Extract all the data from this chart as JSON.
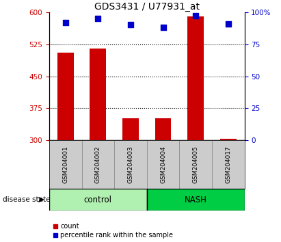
{
  "title": "GDS3431 / U77931_at",
  "samples": [
    "GSM204001",
    "GSM204002",
    "GSM204003",
    "GSM204004",
    "GSM204005",
    "GSM204017"
  ],
  "counts": [
    505,
    515,
    352,
    352,
    590,
    303
  ],
  "percentiles": [
    92,
    95,
    90,
    88,
    97,
    91
  ],
  "ylim_left": [
    300,
    600
  ],
  "ylim_right": [
    0,
    100
  ],
  "yticks_left": [
    300,
    375,
    450,
    525,
    600
  ],
  "yticks_right": [
    0,
    25,
    50,
    75,
    100
  ],
  "bar_color": "#cc0000",
  "scatter_color": "#0000cc",
  "bar_width": 0.5,
  "groups": [
    {
      "label": "control",
      "indices": [
        0,
        1,
        2
      ],
      "color": "#b0f0b0"
    },
    {
      "label": "NASH",
      "indices": [
        3,
        4,
        5
      ],
      "color": "#00cc44"
    }
  ],
  "tick_label_color_left": "#cc0000",
  "tick_label_color_right": "#0000cc",
  "legend_count_label": "count",
  "legend_percentile_label": "percentile rank within the sample",
  "disease_state_label": "disease state"
}
